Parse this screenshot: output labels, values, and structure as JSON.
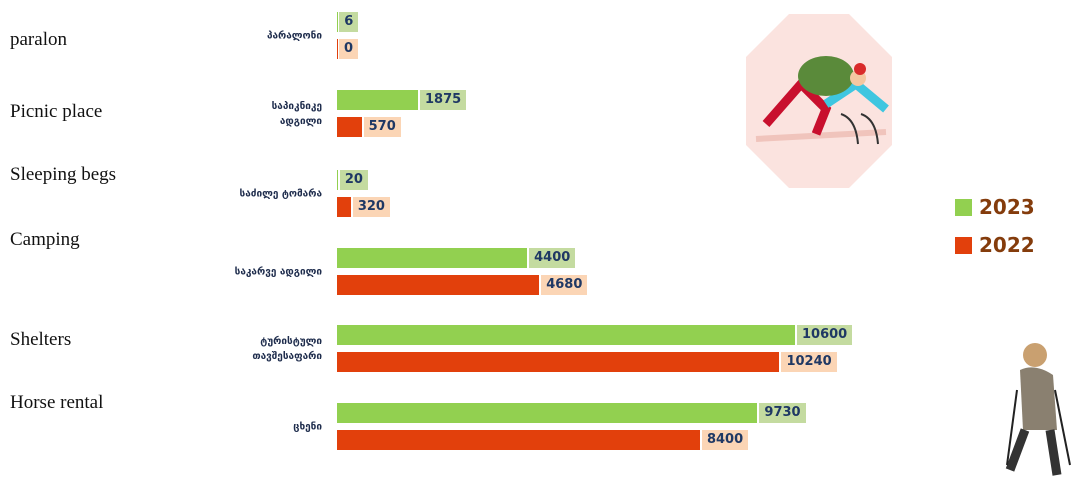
{
  "side_labels": [
    "paralon",
    "Picnic place",
    "Sleeping begs",
    "Camping",
    "Shelters",
    "Horse rental"
  ],
  "chart_data": {
    "type": "bar",
    "orientation": "horizontal",
    "categories": [
      "პარალონი",
      "საპიკნიკე\nადგილი",
      "საძილე ტომარა",
      "საკარვე ადგილი",
      "ტურისტული\nთავშესაფარი",
      "ცხენი"
    ],
    "series": [
      {
        "name": "2023",
        "color": "#92d050",
        "label_bg": "#c4dba0",
        "values": [
          6,
          1875,
          20,
          4400,
          10600,
          9730
        ]
      },
      {
        "name": "2022",
        "color": "#e2400c",
        "label_bg": "#fbd5b5",
        "values": [
          0,
          570,
          320,
          4680,
          10240,
          8400
        ]
      }
    ],
    "xlim": [
      0,
      10600
    ],
    "legend": "right"
  }
}
